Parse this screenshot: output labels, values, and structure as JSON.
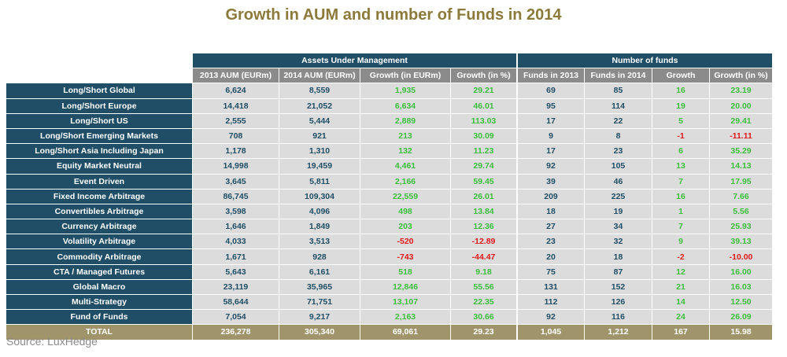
{
  "title": "Growth in AUM and number of Funds in 2014",
  "source": "Source: LuxHedge",
  "colors": {
    "header": "#1f4e66",
    "subheader": "#8b8b8b",
    "cell": "#dcdcdc",
    "total": "#a0956a",
    "positive": "#3cbf3c",
    "negative": "#e01818",
    "title": "#8b7a3a"
  },
  "chart_data": {
    "type": "table",
    "title": "Growth in AUM and number of Funds in 2014",
    "groups": [
      {
        "label": "Assets Under Management",
        "span": 4
      },
      {
        "label": "Number of funds",
        "span": 4
      }
    ],
    "columns": [
      "2013 AUM (EURm)",
      "2014 AUM (EURm)",
      "Growth (in EURm)",
      "Growth (in %)",
      "Funds in 2013",
      "Funds in 2014",
      "Growth",
      "Growth (in %)"
    ],
    "rows": [
      {
        "label": "Long/Short Global",
        "values": [
          "6,624",
          "8,559",
          "1,935",
          "29.21",
          "69",
          "85",
          "16",
          "23.19"
        ]
      },
      {
        "label": "Long/Short Europe",
        "values": [
          "14,418",
          "21,052",
          "6,634",
          "46.01",
          "95",
          "114",
          "19",
          "20.00"
        ]
      },
      {
        "label": "Long/Short US",
        "values": [
          "2,555",
          "5,444",
          "2,889",
          "113.03",
          "17",
          "22",
          "5",
          "29.41"
        ]
      },
      {
        "label": "Long/Short Emerging Markets",
        "values": [
          "708",
          "921",
          "213",
          "30.09",
          "9",
          "8",
          "-1",
          "-11.11"
        ]
      },
      {
        "label": "Long/Short Asia Including Japan",
        "values": [
          "1,178",
          "1,310",
          "132",
          "11.23",
          "17",
          "23",
          "6",
          "35.29"
        ]
      },
      {
        "label": "Equity Market Neutral",
        "values": [
          "14,998",
          "19,459",
          "4,461",
          "29.74",
          "92",
          "105",
          "13",
          "14.13"
        ]
      },
      {
        "label": "Event Driven",
        "values": [
          "3,645",
          "5,811",
          "2,166",
          "59.45",
          "39",
          "46",
          "7",
          "17.95"
        ]
      },
      {
        "label": "Fixed Income Arbitrage",
        "values": [
          "86,745",
          "109,304",
          "22,559",
          "26.01",
          "209",
          "225",
          "16",
          "7.66"
        ]
      },
      {
        "label": "Convertibles Arbitrage",
        "values": [
          "3,598",
          "4,096",
          "498",
          "13.84",
          "18",
          "19",
          "1",
          "5.56"
        ]
      },
      {
        "label": "Currency Arbitrage",
        "values": [
          "1,646",
          "1,849",
          "203",
          "12.36",
          "27",
          "34",
          "7",
          "25.93"
        ]
      },
      {
        "label": "Volatility Arbitrage",
        "values": [
          "4,033",
          "3,513",
          "-520",
          "-12.89",
          "23",
          "32",
          "9",
          "39.13"
        ]
      },
      {
        "label": "Commodity Arbitrage",
        "values": [
          "1,671",
          "928",
          "-743",
          "-44.47",
          "20",
          "18",
          "-2",
          "-10.00"
        ]
      },
      {
        "label": "CTA / Managed Futures",
        "values": [
          "5,643",
          "6,161",
          "518",
          "9.18",
          "75",
          "87",
          "12",
          "16.00"
        ]
      },
      {
        "label": "Global Macro",
        "values": [
          "23,119",
          "35,965",
          "12,846",
          "55.56",
          "131",
          "152",
          "21",
          "16.03"
        ]
      },
      {
        "label": "Multi-Strategy",
        "values": [
          "58,644",
          "71,751",
          "13,107",
          "22.35",
          "112",
          "126",
          "14",
          "12.50"
        ]
      },
      {
        "label": "Fund of Funds",
        "values": [
          "7,054",
          "9,217",
          "2,163",
          "30.66",
          "92",
          "116",
          "24",
          "26.09"
        ]
      }
    ],
    "total": {
      "label": "TOTAL",
      "values": [
        "236,278",
        "305,340",
        "69,061",
        "29.23",
        "1,045",
        "1,212",
        "167",
        "15.98"
      ]
    }
  }
}
